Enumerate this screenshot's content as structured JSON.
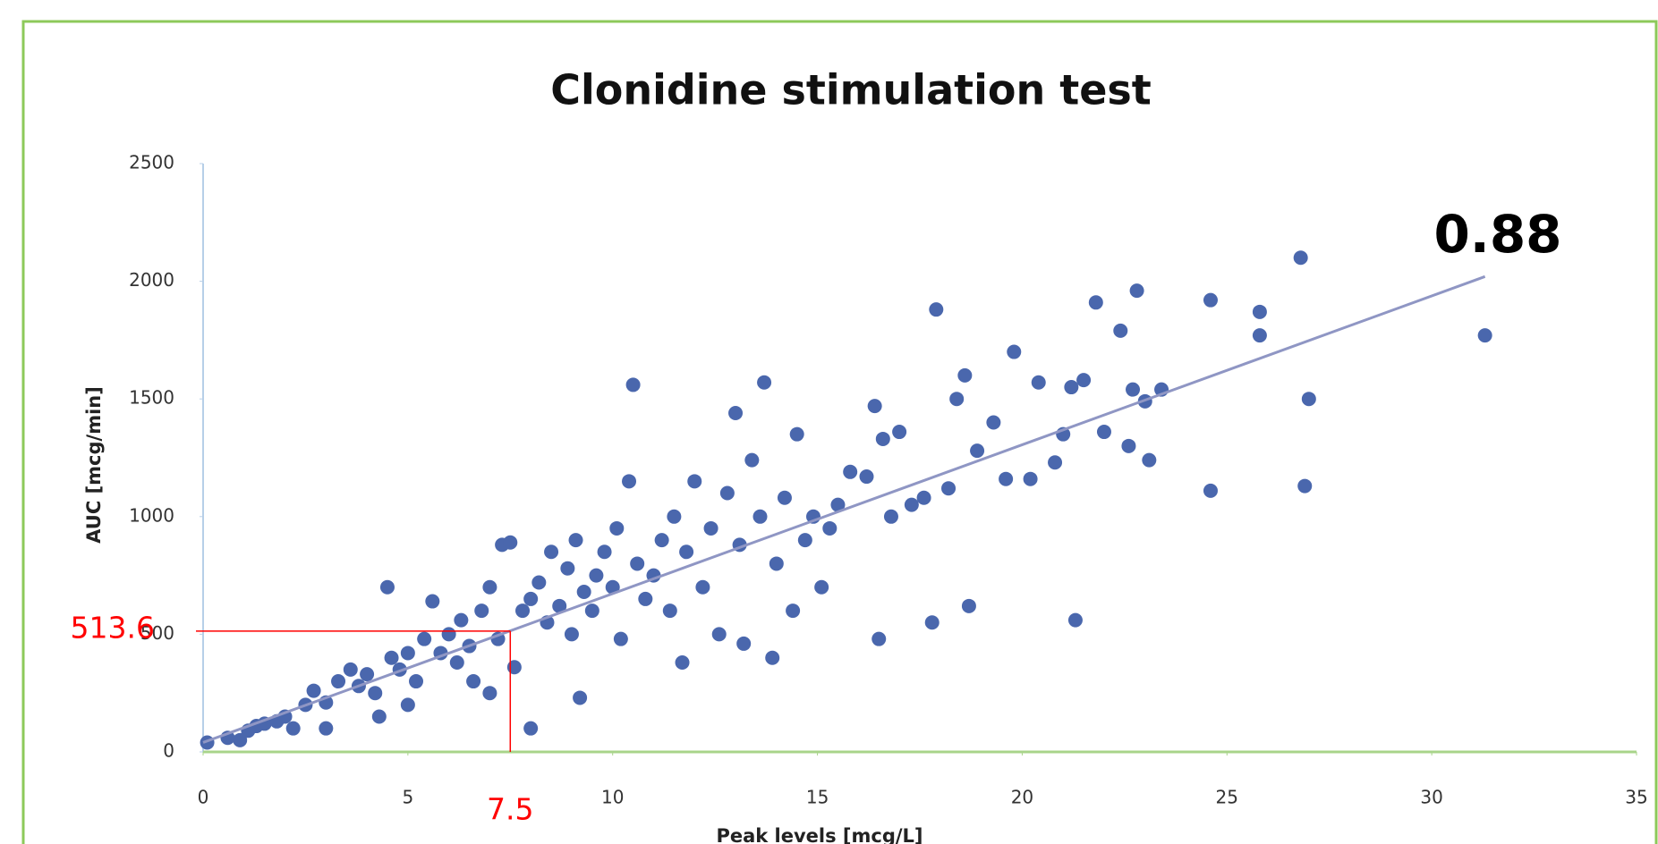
{
  "chart_data": {
    "type": "scatter",
    "title": "Clonidine stimulation test",
    "x_label": "Peak levels [mcg/L]",
    "y_label": "AUC [mcg/min]",
    "color": "#4a67ad",
    "xlim": [
      0,
      35
    ],
    "xticks": [
      0,
      5,
      10,
      15,
      20,
      25,
      30,
      35
    ],
    "ylim": [
      0,
      2500
    ],
    "yticks": [
      0,
      500,
      1000,
      1500,
      2000,
      2500
    ],
    "x": [
      0.1,
      0.6,
      0.9,
      1.1,
      1.3,
      1.5,
      1.8,
      2.0,
      2.2,
      2.5,
      2.7,
      3.0,
      3.0,
      3.3,
      3.6,
      3.8,
      4.0,
      4.2,
      4.3,
      4.5,
      4.6,
      4.8,
      5.0,
      5.0,
      5.2,
      5.4,
      5.6,
      5.8,
      6.0,
      6.2,
      6.3,
      6.5,
      6.6,
      6.8,
      7.0,
      7.0,
      7.2,
      7.3,
      7.5,
      7.6,
      7.8,
      8.0,
      8.0,
      8.2,
      8.4,
      8.5,
      8.7,
      8.9,
      9.0,
      9.1,
      9.2,
      9.3,
      9.5,
      9.6,
      9.8,
      10.0,
      10.1,
      10.2,
      10.4,
      10.5,
      10.6,
      10.8,
      11.0,
      11.2,
      11.4,
      11.5,
      11.7,
      11.8,
      12.0,
      12.2,
      12.4,
      12.6,
      12.8,
      13.0,
      13.1,
      13.2,
      13.4,
      13.6,
      13.7,
      13.9,
      14.0,
      14.2,
      14.4,
      14.5,
      14.7,
      14.9,
      15.1,
      15.3,
      15.5,
      15.8,
      16.2,
      16.4,
      16.5,
      16.6,
      16.8,
      17.0,
      17.3,
      17.6,
      17.8,
      17.9,
      18.2,
      18.4,
      18.6,
      18.7,
      18.9,
      19.3,
      19.6,
      19.8,
      20.2,
      20.4,
      20.8,
      21.0,
      21.2,
      21.3,
      21.5,
      21.8,
      22.0,
      22.4,
      22.6,
      22.7,
      22.8,
      23.0,
      23.1,
      23.4,
      24.6,
      24.6,
      25.8,
      25.8,
      26.8,
      26.9,
      27.0,
      31.3
    ],
    "values": [
      40,
      60,
      50,
      90,
      110,
      120,
      130,
      150,
      100,
      200,
      260,
      210,
      100,
      300,
      350,
      280,
      330,
      250,
      150,
      700,
      400,
      350,
      420,
      200,
      300,
      480,
      640,
      420,
      500,
      380,
      560,
      450,
      300,
      600,
      250,
      700,
      480,
      880,
      890,
      360,
      600,
      100,
      650,
      720,
      550,
      850,
      620,
      780,
      500,
      900,
      230,
      680,
      600,
      750,
      850,
      700,
      950,
      480,
      1150,
      1560,
      800,
      650,
      750,
      900,
      600,
      1000,
      380,
      850,
      1150,
      700,
      950,
      500,
      1100,
      1440,
      880,
      460,
      1240,
      1000,
      1570,
      400,
      800,
      1080,
      600,
      1350,
      900,
      1000,
      700,
      950,
      1050,
      1190,
      1170,
      1470,
      480,
      1330,
      1000,
      1360,
      1050,
      1080,
      550,
      1880,
      1120,
      1500,
      1600,
      620,
      1280,
      1400,
      1160,
      1700,
      1160,
      1570,
      1230,
      1350,
      1550,
      560,
      1580,
      1910,
      1360,
      1790,
      1300,
      1540,
      1960,
      1490,
      1240,
      1540,
      1920,
      1110,
      1870,
      1770,
      2100,
      1130,
      1500,
      1770
    ],
    "trendline": {
      "x": [
        0,
        31.3
      ],
      "y": [
        40,
        2020
      ],
      "color": "#8f96c4"
    },
    "annotation": "0.88",
    "reference_point": {
      "x": 7.5,
      "y": 513.6,
      "color": "#ff0000"
    }
  }
}
